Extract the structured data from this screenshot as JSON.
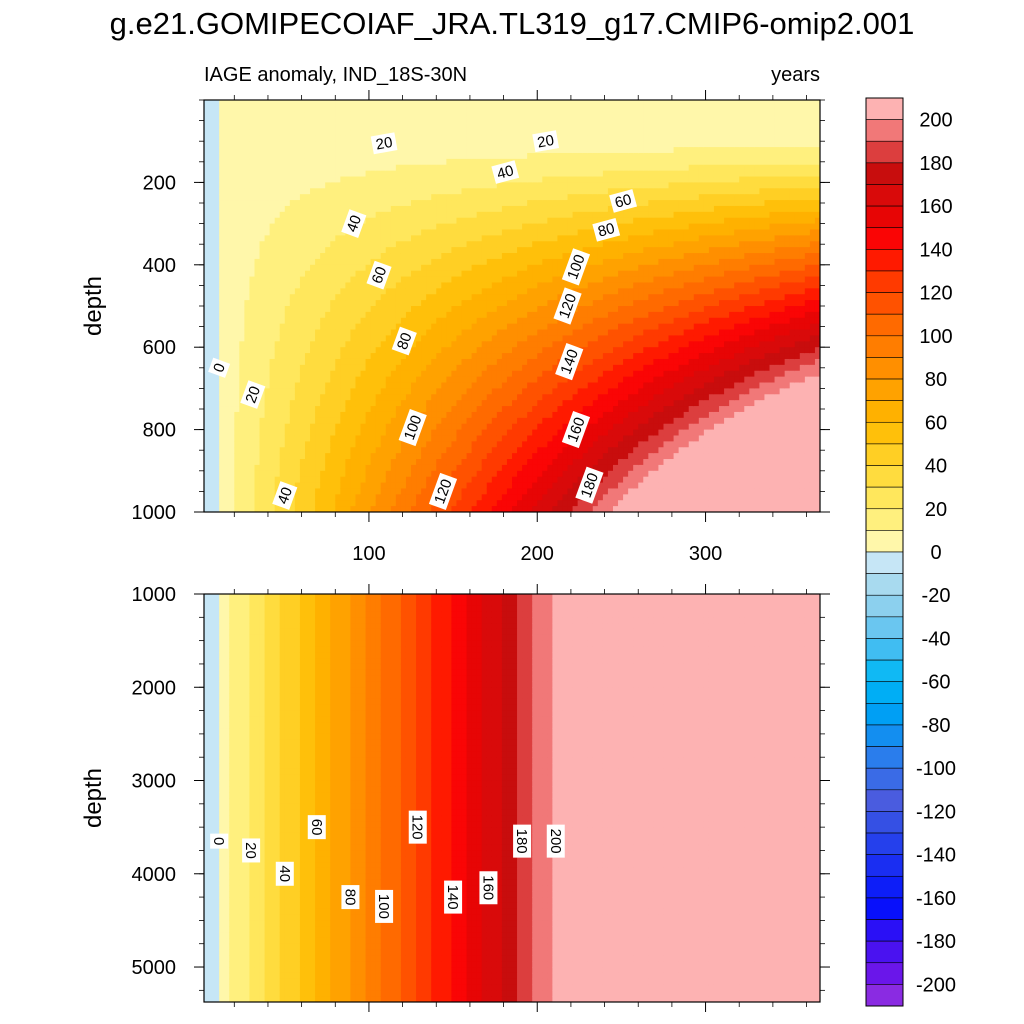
{
  "figure": {
    "title": "g.e21.GOMIPECOIAF_JRA.TL319_g17.CMIP6-omip2.001",
    "left_subtitle": "IAGE anomaly, IND_18S-30N",
    "right_subtitle": "years"
  },
  "chart_data": [
    {
      "type": "heatmap",
      "panel": "upper",
      "ylabel": "depth",
      "xlim": [
        2,
        368
      ],
      "ylim": [
        1000,
        0
      ],
      "xticks": [
        100,
        200,
        300
      ],
      "yticks": [
        200,
        400,
        600,
        800,
        1000
      ],
      "contour_levels": [
        0,
        10,
        20,
        30,
        40,
        50,
        60,
        70,
        80,
        90,
        100,
        110,
        120,
        130,
        140,
        150,
        160,
        170,
        180,
        190,
        200
      ],
      "contour_labels": [
        {
          "text": "0",
          "x": 11,
          "y": 650
        },
        {
          "text": "20",
          "x": 31,
          "y": 715
        },
        {
          "text": "40",
          "x": 50,
          "y": 960
        },
        {
          "text": "20",
          "x": 109,
          "y": 105
        },
        {
          "text": "40",
          "x": 91,
          "y": 300
        },
        {
          "text": "60",
          "x": 106,
          "y": 425
        },
        {
          "text": "80",
          "x": 121,
          "y": 585
        },
        {
          "text": "100",
          "x": 126,
          "y": 795
        },
        {
          "text": "120",
          "x": 144,
          "y": 950
        },
        {
          "text": "20",
          "x": 205,
          "y": 100
        },
        {
          "text": "40",
          "x": 181,
          "y": 175
        },
        {
          "text": "60",
          "x": 251,
          "y": 245
        },
        {
          "text": "80",
          "x": 241,
          "y": 315
        },
        {
          "text": "100",
          "x": 223,
          "y": 405
        },
        {
          "text": "120",
          "x": 218,
          "y": 500
        },
        {
          "text": "140",
          "x": 219,
          "y": 635
        },
        {
          "text": "160",
          "x": 223,
          "y": 800
        },
        {
          "text": "180",
          "x": 231,
          "y": 935
        }
      ]
    },
    {
      "type": "heatmap",
      "panel": "lower",
      "ylabel": "depth",
      "xlim": [
        2,
        368
      ],
      "ylim": [
        5375,
        1000
      ],
      "yticks": [
        1000,
        2000,
        3000,
        4000,
        5000
      ],
      "contour_levels": [
        0,
        10,
        20,
        30,
        40,
        50,
        60,
        70,
        80,
        90,
        100,
        110,
        120,
        130,
        140,
        150,
        160,
        170,
        180,
        190,
        200
      ],
      "contour_labels": [
        {
          "text": "0",
          "x": 11,
          "y": 3650
        },
        {
          "text": "20",
          "x": 30,
          "y": 3750
        },
        {
          "text": "40",
          "x": 50,
          "y": 4000
        },
        {
          "text": "60",
          "x": 69,
          "y": 3500
        },
        {
          "text": "80",
          "x": 89,
          "y": 4250
        },
        {
          "text": "100",
          "x": 109,
          "y": 4350
        },
        {
          "text": "120",
          "x": 129,
          "y": 3500
        },
        {
          "text": "140",
          "x": 150,
          "y": 4250
        },
        {
          "text": "160",
          "x": 171,
          "y": 4150
        },
        {
          "text": "180",
          "x": 191,
          "y": 3650
        },
        {
          "text": "200",
          "x": 211,
          "y": 3650
        }
      ]
    }
  ],
  "colorbar": {
    "labels": [
      "200",
      "180",
      "160",
      "140",
      "120",
      "100",
      "80",
      "60",
      "40",
      "20",
      "0",
      "-20",
      "-40",
      "-60",
      "-80",
      "-100",
      "-120",
      "-140",
      "-160",
      "-180",
      "-200"
    ],
    "colors": [
      "#fdb2b2",
      "#f17878",
      "#dc3e3e",
      "#c80d0d",
      "#d90a0a",
      "#e70505",
      "#fa0505",
      "#ff1a00",
      "#ff3a00",
      "#ff5200",
      "#ff6a00",
      "#ff7d00",
      "#ff8f00",
      "#ffa200",
      "#ffb100",
      "#ffc00a",
      "#ffcf24",
      "#ffdc3e",
      "#ffe75c",
      "#fff07e",
      "#fff7aa",
      "#c6e6f6",
      "#a8daef",
      "#8cd0ee",
      "#6ac6f0",
      "#40bdf2",
      "#10b9f4",
      "#00aef5",
      "#009ff4",
      "#138ef0",
      "#2a7dec",
      "#3a6be6",
      "#4a5cdf",
      "#3550e4",
      "#2540ec",
      "#1a2ef2",
      "#0d1ef8",
      "#0810fb",
      "#2a10f6",
      "#4a12f0",
      "#6a16ea",
      "#8a2be2"
    ]
  }
}
